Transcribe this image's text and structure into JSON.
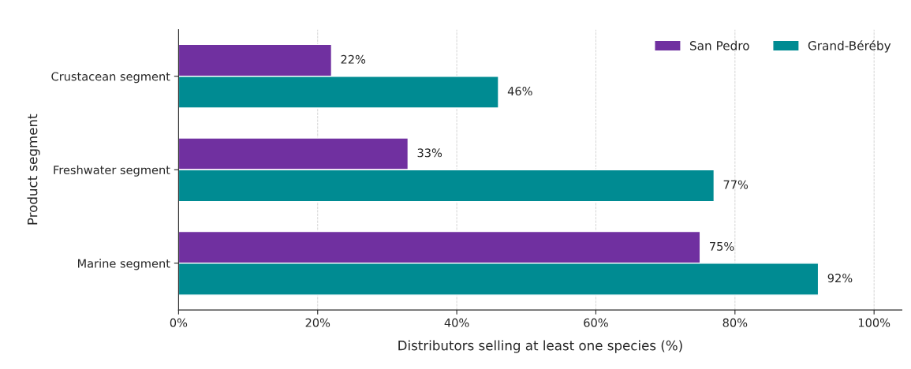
{
  "chart_data": {
    "type": "bar",
    "orientation": "horizontal",
    "xlabel": "Distributors selling at least one species (%)",
    "ylabel": "Product segment",
    "categories": [
      "Crustacean segment",
      "Freshwater segment",
      "Marine segment"
    ],
    "series": [
      {
        "name": "San Pedro",
        "color": "#7030a0",
        "values": [
          22,
          33,
          75
        ],
        "value_labels": [
          "22%",
          "33%",
          "75%"
        ]
      },
      {
        "name": "Grand-Béréby",
        "color": "#008b92",
        "values": [
          46,
          77,
          92
        ],
        "value_labels": [
          "46%",
          "77%",
          "92%"
        ]
      }
    ],
    "xlim": [
      0,
      104
    ],
    "xticks": [
      {
        "value": 0,
        "label": "0%"
      },
      {
        "value": 20,
        "label": "20%"
      },
      {
        "value": 40,
        "label": "40%"
      },
      {
        "value": 60,
        "label": "60%"
      },
      {
        "value": 80,
        "label": "80%"
      },
      {
        "value": 100,
        "label": "100%"
      }
    ],
    "grid": "x",
    "legend": "top right"
  }
}
